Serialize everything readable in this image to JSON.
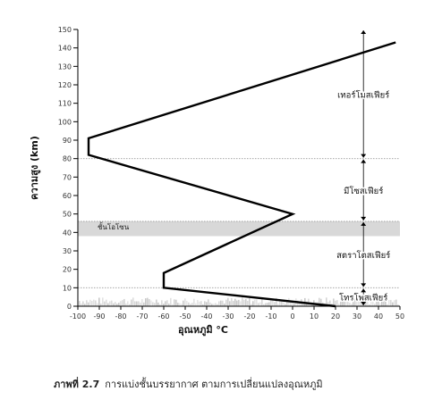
{
  "chart_data": {
    "type": "line",
    "xlabel": "อุณหภูมิ °C",
    "ylabel": "ความสูง (km)",
    "xlim": [
      -100,
      50
    ],
    "ylim": [
      0,
      150
    ],
    "x_ticks": [
      -100,
      -90,
      -80,
      -70,
      -60,
      -50,
      -40,
      -30,
      -20,
      -10,
      0,
      10,
      20,
      30,
      40,
      50
    ],
    "y_ticks": [
      0,
      10,
      20,
      30,
      40,
      50,
      60,
      70,
      80,
      90,
      100,
      110,
      120,
      130,
      140,
      150
    ],
    "series": [
      {
        "color": "#000000",
        "points": [
          {
            "x": 20,
            "y": 0
          },
          {
            "x": -60,
            "y": 10
          },
          {
            "x": -60,
            "y": 18
          },
          {
            "x": 0,
            "y": 50
          },
          {
            "x": -95,
            "y": 82
          },
          {
            "x": -95,
            "y": 91
          },
          {
            "x": 48,
            "y": 143
          }
        ]
      }
    ],
    "ozone_band": {
      "from": 38,
      "to": 46,
      "label": "ชั้นโอโซน"
    },
    "boundaries": [
      10,
      46,
      80
    ],
    "layers": [
      {
        "name": "โทรโพสเฟียร์",
        "from": 0,
        "to": 10
      },
      {
        "name": "สตราโตสเฟียร์",
        "from": 10,
        "to": 46
      },
      {
        "name": "มีโซสเฟียร์",
        "from": 46,
        "to": 80
      },
      {
        "name": "เทอร์โมสเฟียร์",
        "from": 80,
        "to": 150
      }
    ],
    "layer_arrow_x": 33,
    "colors": {
      "line": "#000000",
      "ozone": "#d8d8d8",
      "ground": "#bdbdbd",
      "guides": "#999999"
    }
  },
  "caption": {
    "figure_number": "ภาพที่ 2.7",
    "text": "การแบ่งชั้นบรรยากาศ ตามการเปลี่ยนแปลงอุณหภูมิ"
  }
}
